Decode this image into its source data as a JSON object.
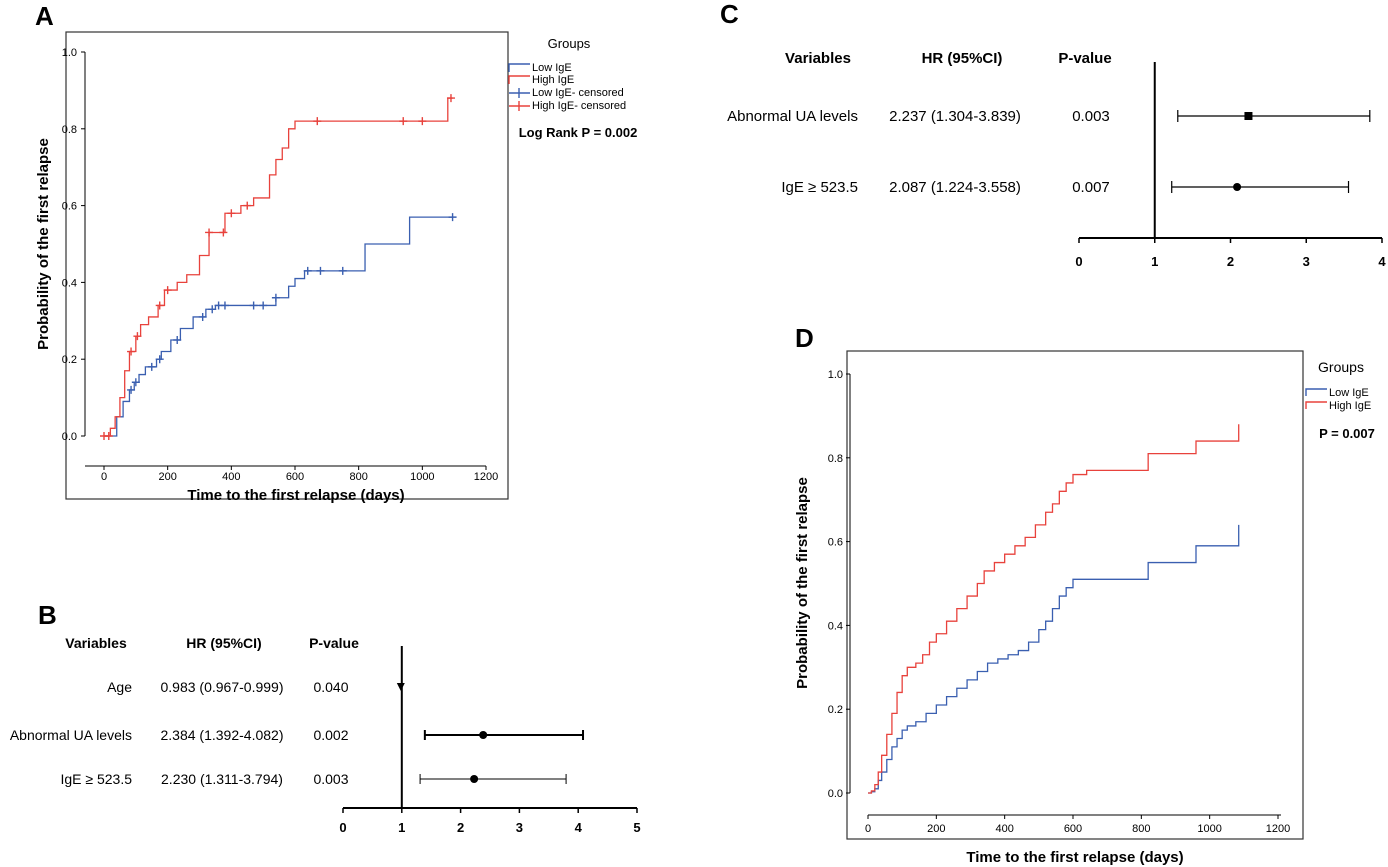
{
  "colors": {
    "low": "#3a5fb0",
    "high": "#e8423c",
    "axis": "#000000",
    "frame": "#333333"
  },
  "chart_data": [
    {
      "id": "A",
      "type": "line",
      "panel_label": "A",
      "xlabel": "Time to the first relapse (days)",
      "ylabel": "Probability of the first relapse",
      "xlim": [
        0,
        1200
      ],
      "ylim": [
        0,
        1.0
      ],
      "xticks": [
        0,
        200,
        400,
        600,
        800,
        1000,
        1200
      ],
      "yticks": [
        0.0,
        0.2,
        0.4,
        0.6,
        0.8,
        1.0
      ],
      "ytick_labels": [
        "0.0",
        "0.2",
        "0.4",
        "0.6",
        "0.8",
        "1.0"
      ],
      "legend_title": "Groups",
      "legend_position": "right",
      "legend": [
        "Low IgE",
        "High IgE",
        "Low IgE- censored",
        "High IgE- censored"
      ],
      "annotation": "Log Rank P = 0.002",
      "series": [
        {
          "name": "Low IgE",
          "color_key": "low",
          "x": [
            0,
            40,
            60,
            80,
            95,
            110,
            130,
            165,
            180,
            210,
            240,
            280,
            320,
            350,
            540,
            580,
            600,
            630,
            820,
            960,
            1095
          ],
          "y": [
            0,
            0.05,
            0.09,
            0.12,
            0.14,
            0.16,
            0.18,
            0.2,
            0.22,
            0.25,
            0.28,
            0.31,
            0.33,
            0.34,
            0.36,
            0.39,
            0.41,
            0.43,
            0.5,
            0.57,
            0.57
          ],
          "censored_x": [
            85,
            100,
            150,
            175,
            230,
            310,
            340,
            360,
            380,
            470,
            500,
            540,
            640,
            680,
            750,
            1095
          ]
        },
        {
          "name": "High IgE",
          "color_key": "high",
          "x": [
            0,
            20,
            35,
            50,
            65,
            80,
            100,
            115,
            140,
            170,
            190,
            230,
            260,
            300,
            330,
            380,
            430,
            470,
            520,
            540,
            560,
            580,
            600,
            1080,
            1095
          ],
          "y": [
            0,
            0.02,
            0.05,
            0.1,
            0.17,
            0.22,
            0.26,
            0.29,
            0.31,
            0.34,
            0.38,
            0.4,
            0.42,
            0.47,
            0.53,
            0.58,
            0.6,
            0.62,
            0.68,
            0.72,
            0.75,
            0.8,
            0.82,
            0.88,
            0.88
          ],
          "censored_x": [
            0,
            15,
            85,
            105,
            175,
            200,
            330,
            375,
            400,
            450,
            670,
            940,
            1000,
            1090
          ]
        }
      ]
    },
    {
      "id": "B",
      "type": "forest",
      "panel_label": "B",
      "headers": {
        "variables": "Variables",
        "hr": "HR (95%CI)",
        "p": "P-value"
      },
      "xlim": [
        0,
        5
      ],
      "xticks": [
        0,
        1,
        2,
        3,
        4,
        5
      ],
      "reference_line": 1,
      "rows": [
        {
          "variable": "Age",
          "hr_text": "0.983 (0.967-0.999)",
          "p": "0.040",
          "hr": 0.983,
          "lo": 0.967,
          "hi": 0.999,
          "marker": "triangle"
        },
        {
          "variable": "Abnormal UA levels",
          "hr_text": "2.384 (1.392-4.082)",
          "p": "0.002",
          "hr": 2.384,
          "lo": 1.392,
          "hi": 4.082,
          "marker": "circle"
        },
        {
          "variable": "IgE ≥ 523.5",
          "hr_text": "2.230 (1.311-3.794)",
          "p": "0.003",
          "hr": 2.23,
          "lo": 1.311,
          "hi": 3.794,
          "marker": "circle"
        }
      ]
    },
    {
      "id": "C",
      "type": "forest",
      "panel_label": "C",
      "headers": {
        "variables": "Variables",
        "hr": "HR (95%CI)",
        "p": "P-value"
      },
      "xlim": [
        0,
        4
      ],
      "xticks": [
        0,
        1,
        2,
        3,
        4
      ],
      "reference_line": 1,
      "rows": [
        {
          "variable": "Abnormal UA levels",
          "hr_text": "2.237 (1.304-3.839)",
          "p": "0.003",
          "hr": 2.237,
          "lo": 1.304,
          "hi": 3.839,
          "marker": "square"
        },
        {
          "variable": "IgE ≥ 523.5",
          "hr_text": "2.087 (1.224-3.558)",
          "p": "0.007",
          "hr": 2.087,
          "lo": 1.224,
          "hi": 3.558,
          "marker": "circle"
        }
      ]
    },
    {
      "id": "D",
      "type": "line",
      "panel_label": "D",
      "xlabel": "Time to the first relapse (days)",
      "ylabel": "Probability of the first relapse",
      "xlim": [
        0,
        1200
      ],
      "ylim": [
        0,
        1.0
      ],
      "xticks": [
        0,
        200,
        400,
        600,
        800,
        1000,
        1200
      ],
      "yticks": [
        0.0,
        0.2,
        0.4,
        0.6,
        0.8,
        1.0
      ],
      "ytick_labels": [
        "0.0",
        "0.2",
        "0.4",
        "0.6",
        "0.8",
        "1.0"
      ],
      "legend_title": "Groups",
      "legend_position": "right",
      "legend": [
        "Low IgE",
        "High IgE"
      ],
      "annotation": "P = 0.007",
      "series": [
        {
          "name": "Low IgE",
          "color_key": "low",
          "x": [
            0,
            10,
            20,
            30,
            40,
            55,
            70,
            85,
            100,
            115,
            140,
            170,
            200,
            230,
            260,
            290,
            320,
            350,
            380,
            410,
            440,
            470,
            500,
            520,
            540,
            560,
            580,
            600,
            820,
            960,
            1085
          ],
          "y": [
            0,
            0.003,
            0.01,
            0.03,
            0.05,
            0.08,
            0.11,
            0.13,
            0.15,
            0.16,
            0.17,
            0.19,
            0.21,
            0.23,
            0.25,
            0.27,
            0.29,
            0.31,
            0.32,
            0.33,
            0.34,
            0.36,
            0.39,
            0.41,
            0.44,
            0.47,
            0.49,
            0.51,
            0.55,
            0.59,
            0.64
          ],
          "censored_x": []
        },
        {
          "name": "High IgE",
          "color_key": "high",
          "x": [
            0,
            10,
            20,
            30,
            40,
            55,
            70,
            85,
            100,
            115,
            140,
            160,
            180,
            200,
            230,
            260,
            290,
            320,
            340,
            370,
            400,
            430,
            460,
            490,
            520,
            540,
            560,
            580,
            600,
            640,
            820,
            960,
            1085
          ],
          "y": [
            0,
            0.005,
            0.02,
            0.05,
            0.09,
            0.14,
            0.19,
            0.24,
            0.28,
            0.3,
            0.31,
            0.33,
            0.36,
            0.38,
            0.41,
            0.44,
            0.47,
            0.5,
            0.53,
            0.55,
            0.57,
            0.59,
            0.61,
            0.64,
            0.67,
            0.69,
            0.72,
            0.74,
            0.76,
            0.77,
            0.81,
            0.84,
            0.88
          ],
          "censored_x": []
        }
      ]
    }
  ]
}
